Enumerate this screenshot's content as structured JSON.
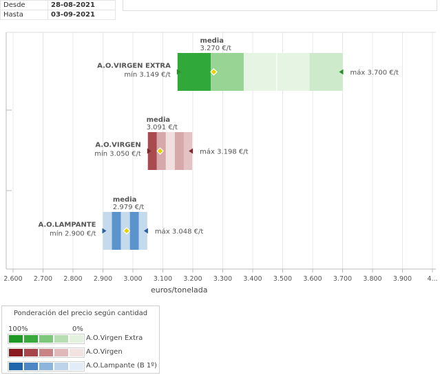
{
  "dates": {
    "desde_label": "Desde",
    "desde_value": "28-08-2021",
    "hasta_label": "Hasta",
    "hasta_value": "03-09-2021"
  },
  "chart_data": {
    "type": "bar",
    "xlabel": "euros/tonelada",
    "x_ticks": [
      "2.600",
      "2.700",
      "2.800",
      "2.900",
      "3.000",
      "3.100",
      "3.200",
      "3.300",
      "3.400",
      "3.500",
      "3.600",
      "3.700",
      "3.800",
      "3.900",
      "4..."
    ],
    "xlim": [
      2600,
      4000
    ],
    "grid": true,
    "series": [
      {
        "name": "A.O.VIRGEN EXTRA",
        "min": 3149,
        "media": 3270,
        "max": 3700,
        "min_label": "mín 3.149 €/t",
        "media_title": "media",
        "media_value": "3.270 €/t",
        "max_label": "máx 3.700 €/t",
        "segments": [
          {
            "from": 3149,
            "to": 3260,
            "color": "#30a93a"
          },
          {
            "from": 3260,
            "to": 3370,
            "color": "#98d494"
          },
          {
            "from": 3370,
            "to": 3590,
            "color": "#e6f5e3"
          },
          {
            "from": 3590,
            "to": 3700,
            "color": "#cdeaca"
          }
        ],
        "dividers": [
          3480
        ],
        "marker_color": "#2e8b2e"
      },
      {
        "name": "A.O.VIRGEN",
        "min": 3050,
        "media": 3091,
        "max": 3198,
        "min_label": "mín 3.050 €/t",
        "media_title": "media",
        "media_value": "3.091 €/t",
        "max_label": "máx 3.198 €/t",
        "segments": [
          {
            "from": 3050,
            "to": 3080,
            "color": "#a84a4e"
          },
          {
            "from": 3080,
            "to": 3110,
            "color": "#d7a8aa"
          },
          {
            "from": 3110,
            "to": 3140,
            "color": "#f1dede"
          },
          {
            "from": 3140,
            "to": 3170,
            "color": "#d7a8aa"
          },
          {
            "from": 3170,
            "to": 3198,
            "color": "#e4c3c4"
          }
        ],
        "dividers": [],
        "marker_color": "#7a2a2e"
      },
      {
        "name": "A.O.LAMPANTE",
        "min": 2900,
        "media": 2979,
        "max": 3048,
        "min_label": "mín 2.900 €/t",
        "media_title": "media",
        "media_value": "2.979 €/t",
        "max_label": "máx 3.048 €/t",
        "segments": [
          {
            "from": 2900,
            "to": 2930,
            "color": "#c6daee"
          },
          {
            "from": 2930,
            "to": 2960,
            "color": "#5b93cc"
          },
          {
            "from": 2960,
            "to": 2990,
            "color": "#c6daee"
          },
          {
            "from": 2990,
            "to": 3020,
            "color": "#5b93cc"
          },
          {
            "from": 3020,
            "to": 3048,
            "color": "#c6daee"
          }
        ],
        "dividers": [],
        "marker_color": "#2c5f9e"
      }
    ]
  },
  "legend": {
    "title": "Ponderación del precio según cantidad",
    "pct_high": "100%",
    "pct_low": "0%",
    "rows": [
      {
        "label": "A.O.Virgen Extra",
        "colors": [
          "#1e9a24",
          "#3aaa3c",
          "#7cc77a",
          "#b6deb2",
          "#e2f2df"
        ]
      },
      {
        "label": "A.O.Virgen",
        "colors": [
          "#8b1a1f",
          "#a8454b",
          "#c98486",
          "#e0b8b9",
          "#f3e2e2"
        ]
      },
      {
        "label": "A.O.Lampante (B 1º)",
        "colors": [
          "#1f66ac",
          "#4a87c4",
          "#8db4db",
          "#bcd3ea",
          "#e1ecf6"
        ]
      }
    ]
  }
}
